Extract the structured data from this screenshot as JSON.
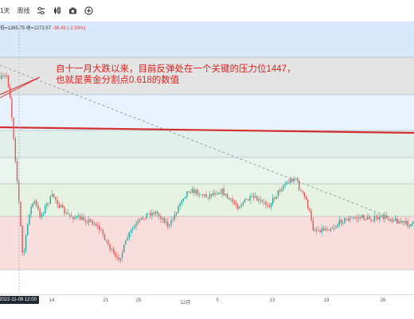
{
  "toolbar": {
    "interval_label": "1天",
    "period_label": "周线",
    "icons": [
      "indicator-icon",
      "candle-icon",
      "camera-icon",
      "add-icon"
    ]
  },
  "ohlc": {
    "text": "低=1265.75 收=1273.57",
    "change": "-38.43 (-2.93%)"
  },
  "annotation": {
    "line1": "自十一月大跌以来，目前反弹处在一个关键的压力位1447，",
    "line2": "也就是黄金分割点0.618的数值"
  },
  "x_axis": {
    "ticks": [
      "14",
      "21",
      "25",
      "12月",
      "5",
      "13",
      "19",
      "26"
    ],
    "current_date_label": "2022-11-09   12:00"
  },
  "colors": {
    "zone_blue": "#d9e9fb",
    "zone_gray": "#e4e4e4",
    "zone_light_blue": "#e8f2fc",
    "zone_teal": "#e2f0ec",
    "zone_green": "#e6f3e2",
    "zone_red": "#f9dede",
    "bull_candle": "#26a69a",
    "bear_candle": "#ef5350",
    "annotation": "#e0201c",
    "trend_line": "#d32f2f"
  }
}
